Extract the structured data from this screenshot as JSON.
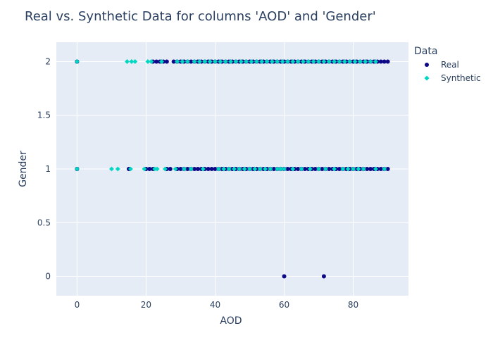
{
  "chart_data": {
    "type": "scatter",
    "title": "Real vs. Synthetic Data for columns 'AOD' and 'Gender'",
    "xlabel": "AOD",
    "ylabel": "Gender",
    "xlim": [
      -6,
      96
    ],
    "ylim": [
      -0.18,
      2.18
    ],
    "x_ticks": [
      0,
      20,
      40,
      60,
      80
    ],
    "y_ticks": [
      0,
      0.5,
      1,
      1.5,
      2
    ],
    "y_tick_labels": [
      "0",
      "0.5",
      "1",
      "1.5",
      "2"
    ],
    "grid": true,
    "legend": {
      "title": "Data",
      "position": "top-right"
    },
    "series": [
      {
        "name": "Real",
        "marker": "circle",
        "color": "#0d0887",
        "points": [
          {
            "x": 0,
            "y": 2
          },
          {
            "x": 22,
            "y": 2
          },
          {
            "x": 23,
            "y": 2
          },
          {
            "x": 24,
            "y": 2
          },
          {
            "x": 25,
            "y": 2
          },
          {
            "x": 26,
            "y": 2
          },
          {
            "x": 28,
            "y": 2
          },
          {
            "x": 29,
            "y": 2
          },
          {
            "x": 30,
            "y": 2
          },
          {
            "x": 31,
            "y": 2
          },
          {
            "x": 32,
            "y": 2
          },
          {
            "x": 33,
            "y": 2
          },
          {
            "x": 34,
            "y": 2
          },
          {
            "x": 35,
            "y": 2
          },
          {
            "x": 36,
            "y": 2
          },
          {
            "x": 37,
            "y": 2
          },
          {
            "x": 38,
            "y": 2
          },
          {
            "x": 39,
            "y": 2
          },
          {
            "x": 40,
            "y": 2
          },
          {
            "x": 41,
            "y": 2
          },
          {
            "x": 42,
            "y": 2
          },
          {
            "x": 43,
            "y": 2
          },
          {
            "x": 44,
            "y": 2
          },
          {
            "x": 45,
            "y": 2
          },
          {
            "x": 46,
            "y": 2
          },
          {
            "x": 47,
            "y": 2
          },
          {
            "x": 48,
            "y": 2
          },
          {
            "x": 49,
            "y": 2
          },
          {
            "x": 50,
            "y": 2
          },
          {
            "x": 51,
            "y": 2
          },
          {
            "x": 52,
            "y": 2
          },
          {
            "x": 53,
            "y": 2
          },
          {
            "x": 54,
            "y": 2
          },
          {
            "x": 55,
            "y": 2
          },
          {
            "x": 56,
            "y": 2
          },
          {
            "x": 57,
            "y": 2
          },
          {
            "x": 58,
            "y": 2
          },
          {
            "x": 59,
            "y": 2
          },
          {
            "x": 60,
            "y": 2
          },
          {
            "x": 61,
            "y": 2
          },
          {
            "x": 62,
            "y": 2
          },
          {
            "x": 63,
            "y": 2
          },
          {
            "x": 64,
            "y": 2
          },
          {
            "x": 65,
            "y": 2
          },
          {
            "x": 66,
            "y": 2
          },
          {
            "x": 67,
            "y": 2
          },
          {
            "x": 68,
            "y": 2
          },
          {
            "x": 69,
            "y": 2
          },
          {
            "x": 70,
            "y": 2
          },
          {
            "x": 71,
            "y": 2
          },
          {
            "x": 72,
            "y": 2
          },
          {
            "x": 73,
            "y": 2
          },
          {
            "x": 74,
            "y": 2
          },
          {
            "x": 75,
            "y": 2
          },
          {
            "x": 76,
            "y": 2
          },
          {
            "x": 77,
            "y": 2
          },
          {
            "x": 78,
            "y": 2
          },
          {
            "x": 79,
            "y": 2
          },
          {
            "x": 80,
            "y": 2
          },
          {
            "x": 81,
            "y": 2
          },
          {
            "x": 82,
            "y": 2
          },
          {
            "x": 83,
            "y": 2
          },
          {
            "x": 84,
            "y": 2
          },
          {
            "x": 85,
            "y": 2
          },
          {
            "x": 86,
            "y": 2
          },
          {
            "x": 87,
            "y": 2
          },
          {
            "x": 88,
            "y": 2
          },
          {
            "x": 89,
            "y": 2
          },
          {
            "x": 90,
            "y": 2
          },
          {
            "x": 0,
            "y": 1
          },
          {
            "x": 15,
            "y": 1
          },
          {
            "x": 20,
            "y": 1
          },
          {
            "x": 21,
            "y": 1
          },
          {
            "x": 22,
            "y": 1
          },
          {
            "x": 26,
            "y": 1
          },
          {
            "x": 27,
            "y": 1
          },
          {
            "x": 29,
            "y": 1
          },
          {
            "x": 30,
            "y": 1
          },
          {
            "x": 31,
            "y": 1
          },
          {
            "x": 32,
            "y": 1
          },
          {
            "x": 33,
            "y": 1
          },
          {
            "x": 34,
            "y": 1
          },
          {
            "x": 35,
            "y": 1
          },
          {
            "x": 36,
            "y": 1
          },
          {
            "x": 37,
            "y": 1
          },
          {
            "x": 38,
            "y": 1
          },
          {
            "x": 39,
            "y": 1
          },
          {
            "x": 40,
            "y": 1
          },
          {
            "x": 41,
            "y": 1
          },
          {
            "x": 42,
            "y": 1
          },
          {
            "x": 43,
            "y": 1
          },
          {
            "x": 44,
            "y": 1
          },
          {
            "x": 45,
            "y": 1
          },
          {
            "x": 46,
            "y": 1
          },
          {
            "x": 47,
            "y": 1
          },
          {
            "x": 48,
            "y": 1
          },
          {
            "x": 49,
            "y": 1
          },
          {
            "x": 50,
            "y": 1
          },
          {
            "x": 51,
            "y": 1
          },
          {
            "x": 52,
            "y": 1
          },
          {
            "x": 53,
            "y": 1
          },
          {
            "x": 54,
            "y": 1
          },
          {
            "x": 55,
            "y": 1
          },
          {
            "x": 56,
            "y": 1
          },
          {
            "x": 57,
            "y": 1
          },
          {
            "x": 58,
            "y": 1
          },
          {
            "x": 59,
            "y": 1
          },
          {
            "x": 60,
            "y": 1
          },
          {
            "x": 61,
            "y": 1
          },
          {
            "x": 62,
            "y": 1
          },
          {
            "x": 63,
            "y": 1
          },
          {
            "x": 64,
            "y": 1
          },
          {
            "x": 65,
            "y": 1
          },
          {
            "x": 66,
            "y": 1
          },
          {
            "x": 67,
            "y": 1
          },
          {
            "x": 68,
            "y": 1
          },
          {
            "x": 69,
            "y": 1
          },
          {
            "x": 70,
            "y": 1
          },
          {
            "x": 71,
            "y": 1
          },
          {
            "x": 72,
            "y": 1
          },
          {
            "x": 73,
            "y": 1
          },
          {
            "x": 74,
            "y": 1
          },
          {
            "x": 75,
            "y": 1
          },
          {
            "x": 76,
            "y": 1
          },
          {
            "x": 77,
            "y": 1
          },
          {
            "x": 78,
            "y": 1
          },
          {
            "x": 79,
            "y": 1
          },
          {
            "x": 80,
            "y": 1
          },
          {
            "x": 81,
            "y": 1
          },
          {
            "x": 82,
            "y": 1
          },
          {
            "x": 83,
            "y": 1
          },
          {
            "x": 84,
            "y": 1
          },
          {
            "x": 85,
            "y": 1
          },
          {
            "x": 86,
            "y": 1
          },
          {
            "x": 87,
            "y": 1
          },
          {
            "x": 88,
            "y": 1
          },
          {
            "x": 89,
            "y": 1
          },
          {
            "x": 90,
            "y": 1
          },
          {
            "x": 60,
            "y": 0
          },
          {
            "x": 71.5,
            "y": 0
          }
        ]
      },
      {
        "name": "Synthetic",
        "marker": "diamond",
        "color": "#00d7c2",
        "points": [
          {
            "x": 0,
            "y": 2
          },
          {
            "x": 14.5,
            "y": 2
          },
          {
            "x": 15.8,
            "y": 2
          },
          {
            "x": 16.8,
            "y": 2
          },
          {
            "x": 20.5,
            "y": 2
          },
          {
            "x": 21.5,
            "y": 2
          },
          {
            "x": 24.5,
            "y": 2
          },
          {
            "x": 29,
            "y": 2
          },
          {
            "x": 30.5,
            "y": 2
          },
          {
            "x": 32,
            "y": 2
          },
          {
            "x": 34,
            "y": 2
          },
          {
            "x": 35.5,
            "y": 2
          },
          {
            "x": 37,
            "y": 2
          },
          {
            "x": 38.5,
            "y": 2
          },
          {
            "x": 40,
            "y": 2
          },
          {
            "x": 41.5,
            "y": 2
          },
          {
            "x": 43,
            "y": 2
          },
          {
            "x": 44.5,
            "y": 2
          },
          {
            "x": 46,
            "y": 2
          },
          {
            "x": 47.5,
            "y": 2
          },
          {
            "x": 49,
            "y": 2
          },
          {
            "x": 50.5,
            "y": 2
          },
          {
            "x": 52,
            "y": 2
          },
          {
            "x": 53.5,
            "y": 2
          },
          {
            "x": 55,
            "y": 2
          },
          {
            "x": 56.5,
            "y": 2
          },
          {
            "x": 58,
            "y": 2
          },
          {
            "x": 59.5,
            "y": 2
          },
          {
            "x": 61,
            "y": 2
          },
          {
            "x": 62.5,
            "y": 2
          },
          {
            "x": 64,
            "y": 2
          },
          {
            "x": 65.5,
            "y": 2
          },
          {
            "x": 67,
            "y": 2
          },
          {
            "x": 68.5,
            "y": 2
          },
          {
            "x": 70,
            "y": 2
          },
          {
            "x": 71.5,
            "y": 2
          },
          {
            "x": 73,
            "y": 2
          },
          {
            "x": 74.5,
            "y": 2
          },
          {
            "x": 76,
            "y": 2
          },
          {
            "x": 77.5,
            "y": 2
          },
          {
            "x": 79,
            "y": 2
          },
          {
            "x": 80.5,
            "y": 2
          },
          {
            "x": 82,
            "y": 2
          },
          {
            "x": 83.5,
            "y": 2
          },
          {
            "x": 85,
            "y": 2
          },
          {
            "x": 86.5,
            "y": 2
          },
          {
            "x": 0,
            "y": 1
          },
          {
            "x": 10,
            "y": 1
          },
          {
            "x": 11.8,
            "y": 1
          },
          {
            "x": 15.5,
            "y": 1
          },
          {
            "x": 19.5,
            "y": 1
          },
          {
            "x": 22.5,
            "y": 1
          },
          {
            "x": 23.2,
            "y": 1
          },
          {
            "x": 25.5,
            "y": 1
          },
          {
            "x": 28.5,
            "y": 1
          },
          {
            "x": 31,
            "y": 1
          },
          {
            "x": 33,
            "y": 1
          },
          {
            "x": 36.5,
            "y": 1
          },
          {
            "x": 41,
            "y": 1
          },
          {
            "x": 42.5,
            "y": 1
          },
          {
            "x": 44,
            "y": 1
          },
          {
            "x": 45.5,
            "y": 1
          },
          {
            "x": 47,
            "y": 1
          },
          {
            "x": 48.5,
            "y": 1
          },
          {
            "x": 50,
            "y": 1
          },
          {
            "x": 51.5,
            "y": 1
          },
          {
            "x": 53,
            "y": 1
          },
          {
            "x": 54.5,
            "y": 1
          },
          {
            "x": 56,
            "y": 1
          },
          {
            "x": 58,
            "y": 1
          },
          {
            "x": 59,
            "y": 1
          },
          {
            "x": 60,
            "y": 1
          },
          {
            "x": 62.5,
            "y": 1
          },
          {
            "x": 65,
            "y": 1
          },
          {
            "x": 67.5,
            "y": 1
          },
          {
            "x": 70,
            "y": 1
          },
          {
            "x": 72,
            "y": 1
          },
          {
            "x": 74.5,
            "y": 1
          },
          {
            "x": 77,
            "y": 1
          },
          {
            "x": 78.5,
            "y": 1
          },
          {
            "x": 80,
            "y": 1
          },
          {
            "x": 81.5,
            "y": 1
          },
          {
            "x": 83,
            "y": 1
          },
          {
            "x": 86.5,
            "y": 1
          },
          {
            "x": 89,
            "y": 1
          }
        ]
      }
    ]
  }
}
